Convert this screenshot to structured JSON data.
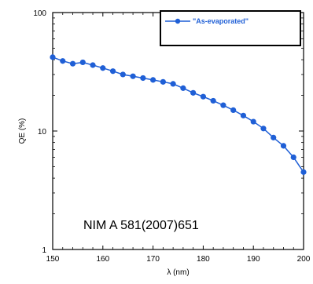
{
  "chart_data": {
    "type": "line",
    "title": "",
    "xlabel": "λ (nm)",
    "ylabel": "QE (%)",
    "xlim": [
      150,
      200
    ],
    "ylim": [
      1,
      100
    ],
    "yscale": "log",
    "xticks": [
      "150",
      "160",
      "170",
      "180",
      "190",
      "200"
    ],
    "yticks": [
      "1",
      "10",
      "100"
    ],
    "grid": false,
    "legend_position": "top-right",
    "annotation": "NIM A 581(2007)651",
    "series": [
      {
        "name": "\"As-evaporated\"",
        "color": "#1f5fd6",
        "marker": "circle",
        "x": [
          150,
          152,
          154,
          156,
          158,
          160,
          162,
          164,
          166,
          168,
          170,
          172,
          174,
          176,
          178,
          180,
          182,
          184,
          186,
          188,
          190,
          192,
          194,
          196,
          198,
          200
        ],
        "y": [
          42,
          39,
          37,
          38,
          36,
          34,
          32,
          30,
          29,
          28,
          27,
          26,
          25,
          23,
          21,
          19.5,
          18,
          16.5,
          15,
          13.5,
          12,
          10.5,
          8.8,
          7.5,
          6,
          4.5
        ]
      }
    ]
  }
}
